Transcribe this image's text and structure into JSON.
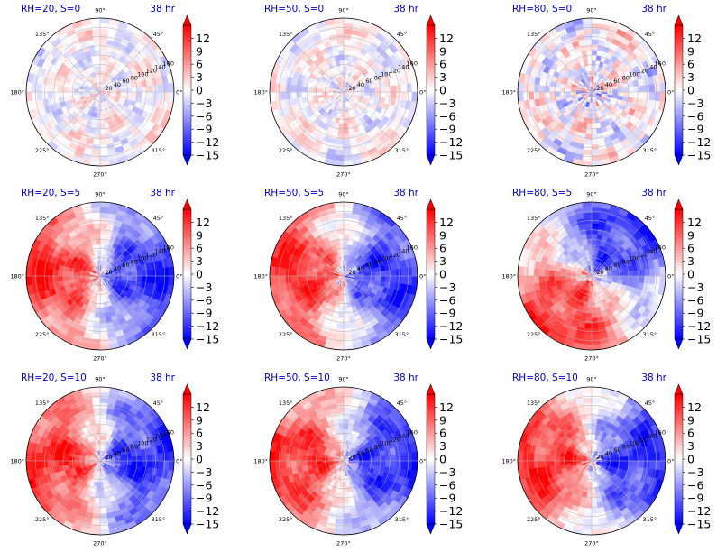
{
  "chart_data": {
    "type": "heatmap",
    "projection": "polar",
    "grid": true,
    "colormap": {
      "name": "bwr",
      "low": "#0000ff",
      "mid": "#ffffff",
      "high": "#ff0000"
    },
    "vmin": -15,
    "vmax": 15,
    "colorbar_ticks": [
      "12",
      "9",
      "6",
      "3",
      "0",
      "−3",
      "−6",
      "−9",
      "−12",
      "−15"
    ],
    "angle_tick_labels": [
      "0°",
      "45°",
      "90°",
      "135°",
      "180°",
      "225°",
      "270°",
      "315°"
    ],
    "radial_tick_labels": [
      "20",
      "40",
      "60",
      "80",
      "100",
      "120",
      "140",
      "160"
    ],
    "panels": [
      {
        "title": "RH=20, S=0",
        "time": "38 hr",
        "pattern": "weak-noise"
      },
      {
        "title": "RH=50, S=0",
        "time": "38 hr",
        "pattern": "weak-noise"
      },
      {
        "title": "RH=80, S=0",
        "time": "38 hr",
        "pattern": "moderate-noise"
      },
      {
        "title": "RH=20, S=5",
        "time": "38 hr",
        "pattern": "dipole-west-positive"
      },
      {
        "title": "RH=50, S=5",
        "time": "38 hr",
        "pattern": "dipole-west-positive"
      },
      {
        "title": "RH=80, S=5",
        "time": "38 hr",
        "pattern": "dipole-southwest-positive"
      },
      {
        "title": "RH=20, S=10",
        "time": "38 hr",
        "pattern": "dipole-west-positive"
      },
      {
        "title": "RH=50, S=10",
        "time": "38 hr",
        "pattern": "dipole-west-positive"
      },
      {
        "title": "RH=80, S=10",
        "time": "38 hr",
        "pattern": "dipole-west-positive"
      }
    ]
  }
}
